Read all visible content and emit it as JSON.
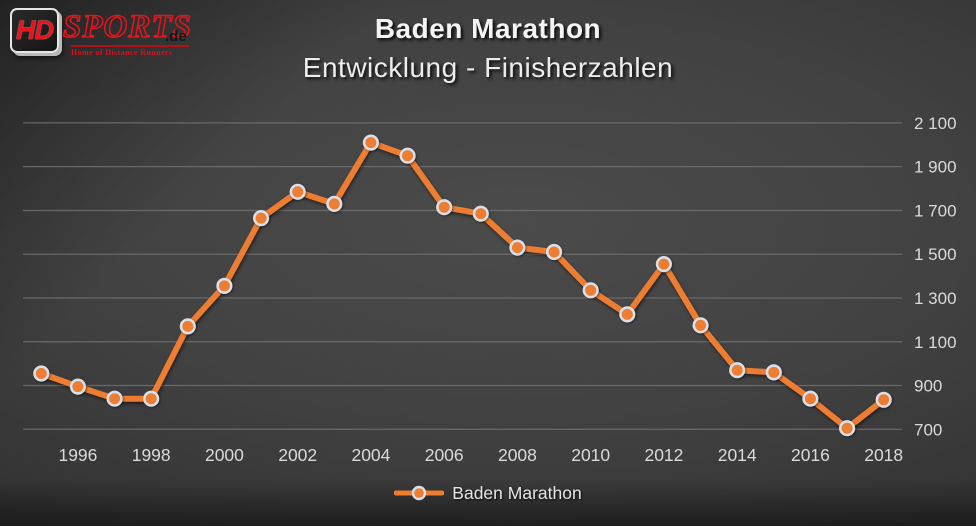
{
  "logo": {
    "hd": "HD",
    "sports": "SPORTS",
    "tld": ".de",
    "tagline": "Home of Distance Runners"
  },
  "title": {
    "line1": "Baden Marathon",
    "line2": "Entwicklung - Finisherzahlen"
  },
  "legend": {
    "label": "Baden Marathon"
  },
  "colors": {
    "series_line": "#ED7D31",
    "marker_fill": "#ED7D31",
    "marker_ring": "#D8DFE8",
    "gridline": "#757575",
    "axis_text": "#DADADA",
    "title_text": "#F4F4F4",
    "logo_red": "#E8141D",
    "background_center": "#4B4B4B",
    "background_edge": "#262626"
  },
  "chart_data": {
    "type": "line",
    "title": "Baden Marathon",
    "subtitle": "Entwicklung - Finisherzahlen",
    "categories": [
      1995,
      1996,
      1997,
      1998,
      1999,
      2000,
      2001,
      2002,
      2003,
      2004,
      2005,
      2006,
      2007,
      2008,
      2009,
      2010,
      2011,
      2012,
      2013,
      2014,
      2015,
      2016,
      2017,
      2018
    ],
    "series": [
      {
        "name": "Baden Marathon",
        "color": "#ED7D31",
        "values": [
          955,
          895,
          840,
          840,
          1170,
          1355,
          1665,
          1785,
          1730,
          2010,
          1950,
          1715,
          1685,
          1530,
          1510,
          1335,
          1225,
          1455,
          1175,
          970,
          960,
          840,
          705,
          835
        ]
      }
    ],
    "ylim": [
      700,
      2100
    ],
    "y_tick_step": 200,
    "y_tick_labels": [
      "700",
      "900",
      "1 100",
      "1 300",
      "1 500",
      "1 700",
      "1 900",
      "2 100"
    ],
    "x_tick_labels": [
      "1996",
      "1998",
      "2000",
      "2002",
      "2004",
      "2006",
      "2008",
      "2010",
      "2012",
      "2014",
      "2016",
      "2018"
    ],
    "grid": "horizontal",
    "legend_position": "bottom",
    "y_axis_side": "right"
  }
}
